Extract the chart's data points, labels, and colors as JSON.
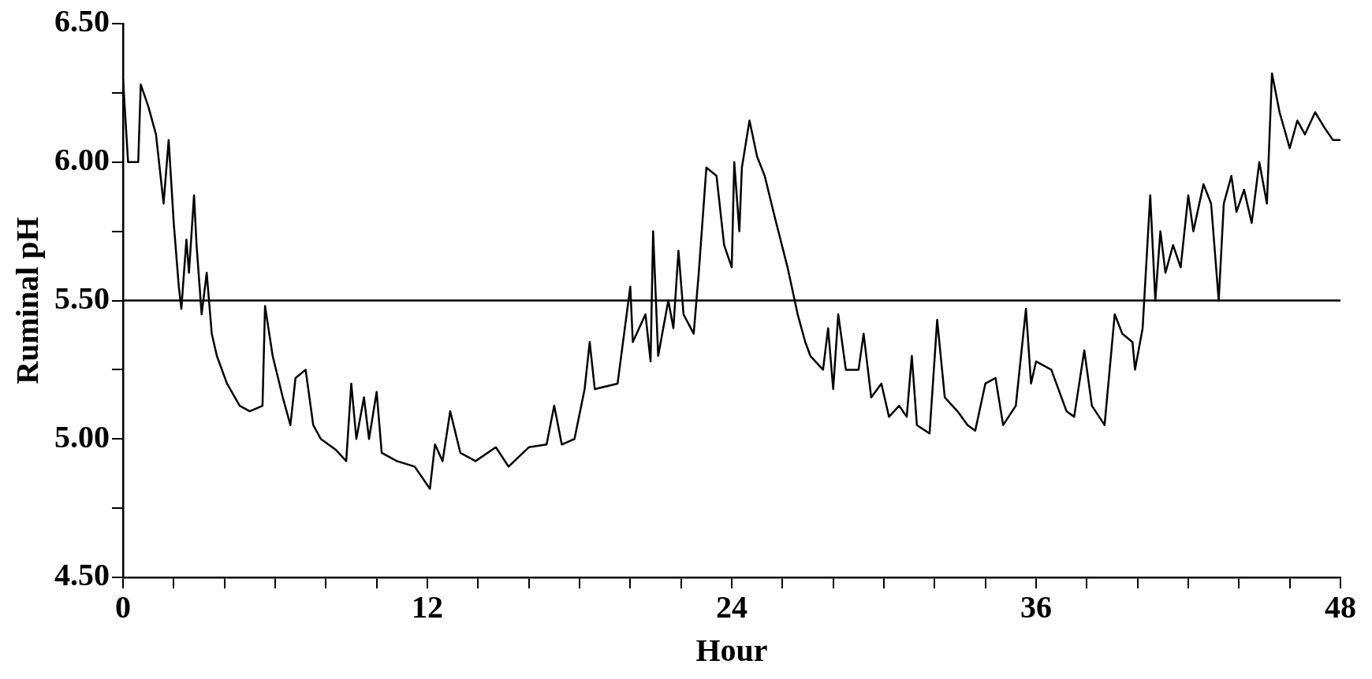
{
  "chart_data": {
    "type": "line",
    "xlabel": "Hour",
    "ylabel": "Ruminal pH",
    "grid": false,
    "legend": false,
    "marker": "none",
    "line_style": "solid",
    "xlim": [
      0,
      48
    ],
    "ylim": [
      4.5,
      6.5
    ],
    "xticks": [
      0,
      {
        "value": 2,
        "label": null
      },
      {
        "value": 4,
        "label": null
      },
      {
        "value": 6,
        "label": null
      },
      {
        "value": 8,
        "label": null
      },
      {
        "value": 10,
        "label": null
      },
      12,
      {
        "value": 14,
        "label": null
      },
      {
        "value": 16,
        "label": null
      },
      {
        "value": 18,
        "label": null
      },
      {
        "value": 20,
        "label": null
      },
      {
        "value": 22,
        "label": null
      },
      24,
      {
        "value": 26,
        "label": null
      },
      {
        "value": 28,
        "label": null
      },
      {
        "value": 30,
        "label": null
      },
      {
        "value": 32,
        "label": null
      },
      {
        "value": 34,
        "label": null
      },
      36,
      {
        "value": 38,
        "label": null
      },
      {
        "value": 40,
        "label": null
      },
      {
        "value": 42,
        "label": null
      },
      {
        "value": 44,
        "label": null
      },
      {
        "value": 46,
        "label": null
      },
      48
    ],
    "yticks": [
      {
        "value": 4.5,
        "label": "4.50"
      },
      {
        "value": 4.75,
        "label": null
      },
      {
        "value": 5,
        "label": "5.00"
      },
      {
        "value": 5.25,
        "label": null
      },
      {
        "value": 5.5,
        "label": "5.50"
      },
      {
        "value": 5.75,
        "label": null
      },
      {
        "value": 6,
        "label": "6.00"
      },
      {
        "value": 6.25,
        "label": null
      },
      {
        "value": 6.5,
        "label": "6.50"
      }
    ],
    "ref_lines": [
      {
        "axis": "y",
        "value": 5.5,
        "color": "#000000"
      }
    ],
    "series": [
      {
        "color": "#000000",
        "x": [
          0,
          0.2,
          0.6,
          0.7,
          1.0,
          1.3,
          1.6,
          1.8,
          2.0,
          2.2,
          2.3,
          2.5,
          2.6,
          2.8,
          2.9,
          3.1,
          3.3,
          3.5,
          3.7,
          4.1,
          4.6,
          5.0,
          5.5,
          5.6,
          5.9,
          6.3,
          6.6,
          6.8,
          7.2,
          7.5,
          7.8,
          8.4,
          8.8,
          9.0,
          9.2,
          9.5,
          9.7,
          10.0,
          10.2,
          10.8,
          11.5,
          12.1,
          12.3,
          12.6,
          12.9,
          13.3,
          13.9,
          14.7,
          15.2,
          16.0,
          16.7,
          17.0,
          17.3,
          17.8,
          18.2,
          18.4,
          18.6,
          19.5,
          20.0,
          20.1,
          20.6,
          20.8,
          20.9,
          21.1,
          21.5,
          21.7,
          21.9,
          22.1,
          22.5,
          22.7,
          23.0,
          23.4,
          23.7,
          24.0,
          24.1,
          24.3,
          24.4,
          24.7,
          25.0,
          25.3,
          25.7,
          26.2,
          26.6,
          26.9,
          27.1,
          27.6,
          27.8,
          28.0,
          28.2,
          28.5,
          29.0,
          29.2,
          29.5,
          29.9,
          30.2,
          30.6,
          30.9,
          31.1,
          31.3,
          31.8,
          32.1,
          32.4,
          32.9,
          33.3,
          33.6,
          34.0,
          34.4,
          34.7,
          35.2,
          35.6,
          35.8,
          36.0,
          36.6,
          37.2,
          37.5,
          37.9,
          38.2,
          38.7,
          39.1,
          39.4,
          39.8,
          39.9,
          40.2,
          40.5,
          40.7,
          40.9,
          41.1,
          41.4,
          41.7,
          42.0,
          42.2,
          42.6,
          42.9,
          43.2,
          43.4,
          43.7,
          43.9,
          44.2,
          44.5,
          44.8,
          45.1,
          45.3,
          45.6,
          46.0,
          46.3,
          46.6,
          47.0,
          47.4,
          47.7,
          48.0
        ],
        "values": [
          6.3,
          6.0,
          6.0,
          6.28,
          6.2,
          6.1,
          5.85,
          6.08,
          5.78,
          5.55,
          5.47,
          5.72,
          5.6,
          5.88,
          5.7,
          5.45,
          5.6,
          5.38,
          5.3,
          5.2,
          5.12,
          5.1,
          5.12,
          5.48,
          5.3,
          5.15,
          5.05,
          5.22,
          5.25,
          5.05,
          5.0,
          4.96,
          4.92,
          5.2,
          5.0,
          5.15,
          5.0,
          5.17,
          4.95,
          4.92,
          4.9,
          4.82,
          4.98,
          4.92,
          5.1,
          4.95,
          4.92,
          4.97,
          4.9,
          4.97,
          4.98,
          5.12,
          4.98,
          5.0,
          5.18,
          5.35,
          5.18,
          5.2,
          5.55,
          5.35,
          5.45,
          5.28,
          5.75,
          5.3,
          5.5,
          5.4,
          5.68,
          5.45,
          5.38,
          5.6,
          5.98,
          5.95,
          5.7,
          5.62,
          6.0,
          5.75,
          5.98,
          6.15,
          6.02,
          5.95,
          5.8,
          5.62,
          5.45,
          5.35,
          5.3,
          5.25,
          5.4,
          5.18,
          5.45,
          5.25,
          5.25,
          5.38,
          5.15,
          5.2,
          5.08,
          5.12,
          5.08,
          5.3,
          5.05,
          5.02,
          5.43,
          5.15,
          5.1,
          5.05,
          5.03,
          5.2,
          5.22,
          5.05,
          5.12,
          5.47,
          5.2,
          5.28,
          5.25,
          5.1,
          5.08,
          5.32,
          5.12,
          5.05,
          5.45,
          5.38,
          5.35,
          5.25,
          5.4,
          5.88,
          5.5,
          5.75,
          5.6,
          5.7,
          5.62,
          5.88,
          5.75,
          5.92,
          5.85,
          5.5,
          5.85,
          5.95,
          5.82,
          5.9,
          5.78,
          6.0,
          5.85,
          6.32,
          6.18,
          6.05,
          6.15,
          6.1,
          6.18,
          6.12,
          6.08,
          6.08
        ]
      }
    ]
  }
}
